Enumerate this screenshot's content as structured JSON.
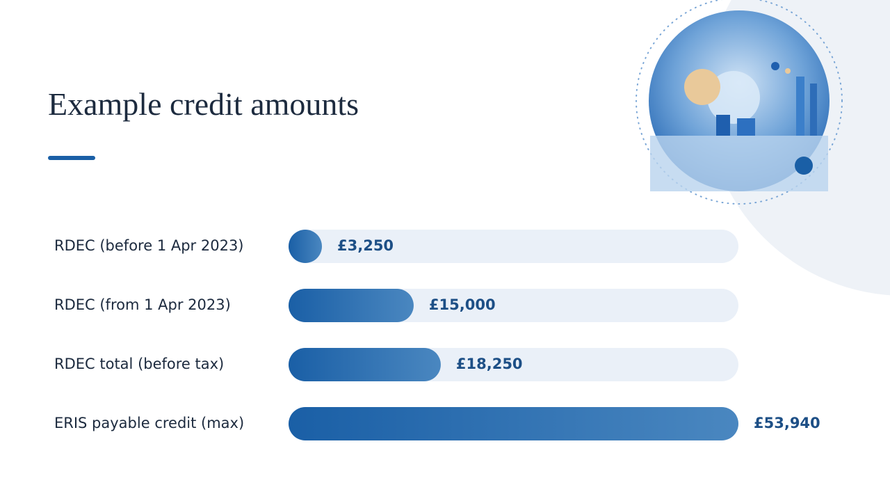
{
  "chart_data": {
    "type": "bar",
    "orientation": "horizontal",
    "title": "Example credit amounts",
    "categories": [
      "RDEC (before 1 Apr 2023)",
      "RDEC (from 1 Apr 2023)",
      "RDEC total (before tax)",
      "ERIS payable credit (max)"
    ],
    "values": [
      3250,
      15000,
      18250,
      53940
    ],
    "value_labels": [
      "£3,250",
      "£15,000",
      "£18,250",
      "£53,940"
    ],
    "color": "#1a5fa6"
  }
}
